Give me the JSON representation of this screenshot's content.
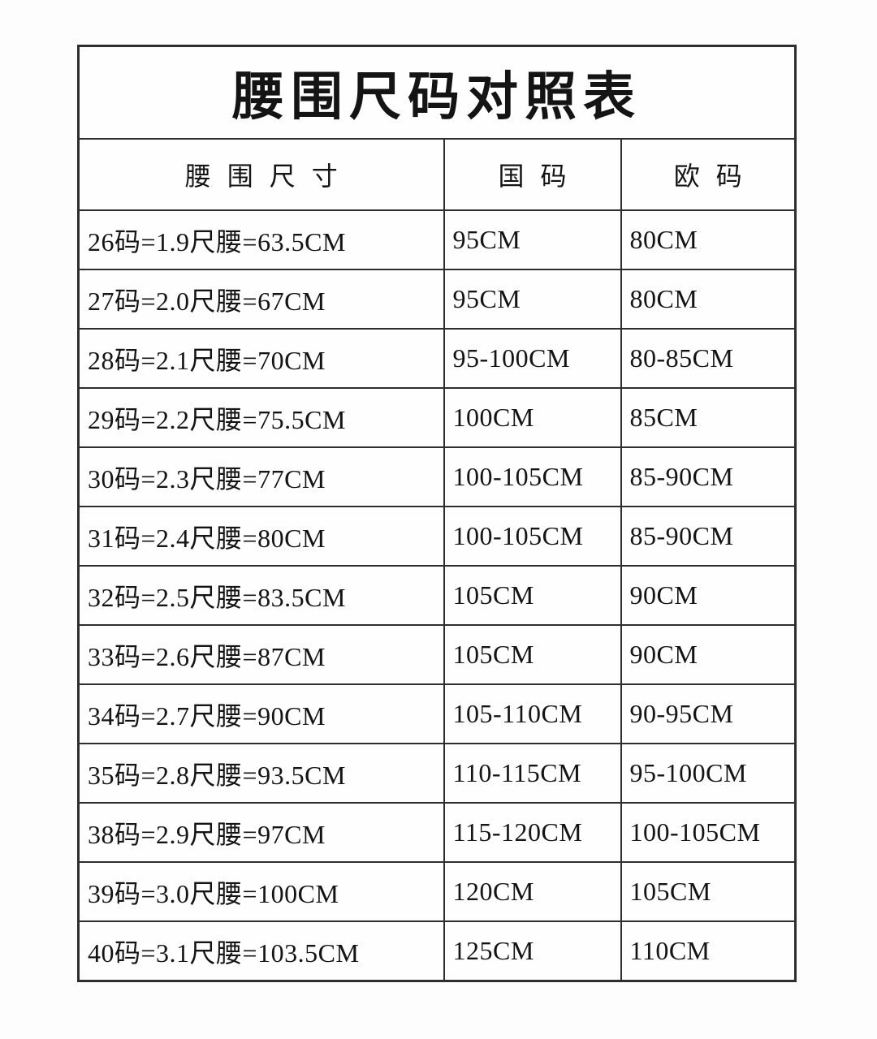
{
  "page": {
    "background_color": "#fdfdfd",
    "text_color": "#141414",
    "border_color": "#2e2e2e"
  },
  "table": {
    "title": "腰围尺码对照表",
    "columns": [
      "腰围尺寸",
      "国码",
      "欧码"
    ],
    "rows": [
      [
        "26码=1.9尺腰=63.5CM",
        "95CM",
        "80CM"
      ],
      [
        "27码=2.0尺腰=67CM",
        "95CM",
        "80CM"
      ],
      [
        "28码=2.1尺腰=70CM",
        "95-100CM",
        "80-85CM"
      ],
      [
        "29码=2.2尺腰=75.5CM",
        "100CM",
        "85CM"
      ],
      [
        "30码=2.3尺腰=77CM",
        "100-105CM",
        "85-90CM"
      ],
      [
        "31码=2.4尺腰=80CM",
        "100-105CM",
        "85-90CM"
      ],
      [
        "32码=2.5尺腰=83.5CM",
        "105CM",
        "90CM"
      ],
      [
        "33码=2.6尺腰=87CM",
        "105CM",
        "90CM"
      ],
      [
        "34码=2.7尺腰=90CM",
        "105-110CM",
        "90-95CM"
      ],
      [
        "35码=2.8尺腰=93.5CM",
        "110-115CM",
        "95-100CM"
      ],
      [
        "38码=2.9尺腰=97CM",
        "115-120CM",
        "100-105CM"
      ],
      [
        "39码=3.0尺腰=100CM",
        "120CM",
        "105CM"
      ],
      [
        "40码=3.1尺腰=103.5CM",
        "125CM",
        "110CM"
      ]
    ]
  }
}
